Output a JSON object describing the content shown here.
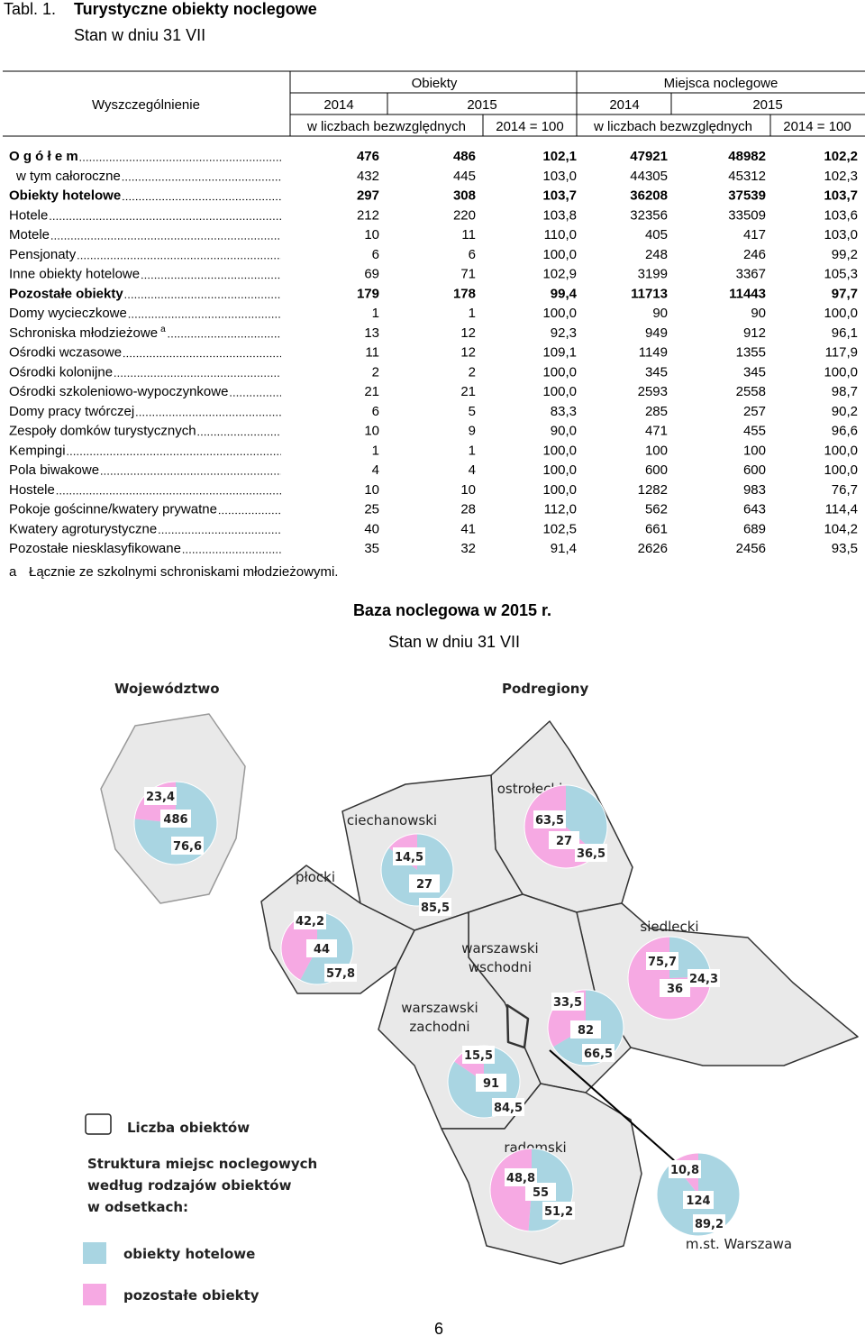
{
  "title": {
    "number": "Tabl. 1.",
    "text": "Turystyczne obiekty noclegowe",
    "subtitle": "Stan w dniu 31 VII"
  },
  "table": {
    "header": {
      "stub": "Wyszczególnienie",
      "groups": [
        "Obiekty",
        "Miejsca noclegowe"
      ],
      "years": [
        "2014",
        "2015",
        "2014",
        "2015"
      ],
      "units": [
        "w liczbach bezwzględnych",
        "2014 = 100",
        "w liczbach bezwzględnych",
        "2014 = 100"
      ]
    },
    "rows": [
      {
        "label": "O g ó ł e m",
        "bold": true,
        "cells": [
          "476",
          "486",
          "102,1",
          "47921",
          "48982",
          "102,2"
        ]
      },
      {
        "label": "w tym całoroczne",
        "indent": true,
        "cells": [
          "432",
          "445",
          "103,0",
          "44305",
          "45312",
          "102,3"
        ]
      },
      {
        "label": "Obiekty hotelowe",
        "bold": true,
        "cells": [
          "297",
          "308",
          "103,7",
          "36208",
          "37539",
          "103,7"
        ]
      },
      {
        "label": "Hotele",
        "cells": [
          "212",
          "220",
          "103,8",
          "32356",
          "33509",
          "103,6"
        ]
      },
      {
        "label": "Motele",
        "cells": [
          "10",
          "11",
          "110,0",
          "405",
          "417",
          "103,0"
        ]
      },
      {
        "label": "Pensjonaty",
        "cells": [
          "6",
          "6",
          "100,0",
          "248",
          "246",
          "99,2"
        ]
      },
      {
        "label": "Inne obiekty hotelowe",
        "cells": [
          "69",
          "71",
          "102,9",
          "3199",
          "3367",
          "105,3"
        ]
      },
      {
        "label": "Pozostałe obiekty",
        "bold": true,
        "cells": [
          "179",
          "178",
          "99,4",
          "11713",
          "11443",
          "97,7"
        ]
      },
      {
        "label": "Domy wycieczkowe",
        "cells": [
          "1",
          "1",
          "100,0",
          "90",
          "90",
          "100,0"
        ]
      },
      {
        "label": "Schroniska młodzieżowe",
        "note": "a",
        "cells": [
          "13",
          "12",
          "92,3",
          "949",
          "912",
          "96,1"
        ]
      },
      {
        "label": "Ośrodki wczasowe",
        "cells": [
          "11",
          "12",
          "109,1",
          "1149",
          "1355",
          "117,9"
        ]
      },
      {
        "label": "Ośrodki kolonijne",
        "cells": [
          "2",
          "2",
          "100,0",
          "345",
          "345",
          "100,0"
        ]
      },
      {
        "label": "Ośrodki szkoleniowo-wypoczynkowe",
        "cells": [
          "21",
          "21",
          "100,0",
          "2593",
          "2558",
          "98,7"
        ]
      },
      {
        "label": "Domy pracy twórczej",
        "cells": [
          "6",
          "5",
          "83,3",
          "285",
          "257",
          "90,2"
        ]
      },
      {
        "label": "Zespoły domków turystycznych",
        "cells": [
          "10",
          "9",
          "90,0",
          "471",
          "455",
          "96,6"
        ]
      },
      {
        "label": "Kempingi",
        "cells": [
          "1",
          "1",
          "100,0",
          "100",
          "100",
          "100,0"
        ]
      },
      {
        "label": "Pola biwakowe",
        "cells": [
          "4",
          "4",
          "100,0",
          "600",
          "600",
          "100,0"
        ]
      },
      {
        "label": "Hostele",
        "cells": [
          "10",
          "10",
          "100,0",
          "1282",
          "983",
          "76,7"
        ]
      },
      {
        "label": "Pokoje gościnne/kwatery prywatne",
        "cells": [
          "25",
          "28",
          "112,0",
          "562",
          "643",
          "114,4"
        ]
      },
      {
        "label": "Kwatery agroturystyczne",
        "cells": [
          "40",
          "41",
          "102,5",
          "661",
          "689",
          "104,2"
        ]
      },
      {
        "label": "Pozostałe niesklasyfikowane",
        "cells": [
          "35",
          "32",
          "91,4",
          "2626",
          "2456",
          "93,5"
        ]
      }
    ],
    "footnote": {
      "marker": "a",
      "text": "Łącznie ze szkolnymi schroniskami młodzieżowymi."
    }
  },
  "map": {
    "title": "Baza noclegowa w 2015 r.",
    "subtitle": "Stan w dniu 31 VII",
    "sections": [
      "Województwo",
      "Podregiony"
    ],
    "legend": {
      "count": "Liczba obiektów",
      "structure": [
        "Struktura miejsc noclegowych",
        "według rodzajów obiektów",
        "w odsetkach:"
      ],
      "series": [
        {
          "name": "obiekty hotelowe",
          "color": "#a9d5e2"
        },
        {
          "name": "pozostałe obiekty",
          "color": "#f6a9e3"
        }
      ]
    },
    "voivodeship": {
      "count": 486,
      "values": [
        76.6,
        23.4
      ],
      "value_labels": [
        "76,6",
        "23,4"
      ]
    },
    "regions": [
      {
        "name": [
          "ostrołęcki"
        ],
        "count": 27,
        "values": [
          36.5,
          63.5
        ],
        "value_labels": [
          "36,5",
          "63,5"
        ]
      },
      {
        "name": [
          "ciechanowski"
        ],
        "count": 27,
        "values": [
          85.5,
          14.5
        ],
        "value_labels": [
          "85,5",
          "14,5"
        ]
      },
      {
        "name": [
          "płocki"
        ],
        "count": 44,
        "values": [
          57.8,
          42.2
        ],
        "value_labels": [
          "57,8",
          "42,2"
        ]
      },
      {
        "name": [
          "siedlecki"
        ],
        "count": 36,
        "values": [
          24.3,
          75.7
        ],
        "value_labels": [
          "24,3",
          "75,7"
        ]
      },
      {
        "name": [
          "warszawski",
          "wschodni"
        ],
        "count": 82,
        "values": [
          66.5,
          33.5
        ],
        "value_labels": [
          "66,5",
          "33,5"
        ]
      },
      {
        "name": [
          "warszawski",
          "zachodni"
        ],
        "count": 91,
        "values": [
          84.5,
          15.5
        ],
        "value_labels": [
          "84,5",
          "15,5"
        ]
      },
      {
        "name": [
          "radomski"
        ],
        "count": 55,
        "values": [
          51.2,
          48.8
        ],
        "value_labels": [
          "51,2",
          "48,8"
        ]
      },
      {
        "name": [
          "m.st. Warszawa"
        ],
        "count": 124,
        "values": [
          89.2,
          10.8
        ],
        "value_labels": [
          "89,2",
          "10,8"
        ]
      }
    ]
  },
  "page_number": "6"
}
